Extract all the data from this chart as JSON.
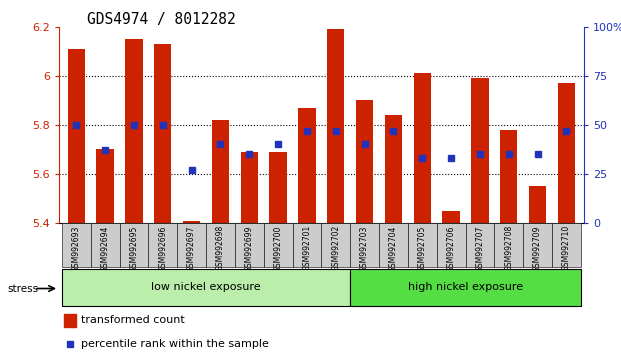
{
  "title": "GDS4974 / 8012282",
  "samples": [
    "GSM992693",
    "GSM992694",
    "GSM992695",
    "GSM992696",
    "GSM992697",
    "GSM992698",
    "GSM992699",
    "GSM992700",
    "GSM992701",
    "GSM992702",
    "GSM992703",
    "GSM992704",
    "GSM992705",
    "GSM992706",
    "GSM992707",
    "GSM992708",
    "GSM992709",
    "GSM992710"
  ],
  "red_values": [
    6.11,
    5.7,
    6.15,
    6.13,
    5.41,
    5.82,
    5.69,
    5.69,
    5.87,
    6.19,
    5.9,
    5.84,
    6.01,
    5.45,
    5.99,
    5.78,
    5.55,
    5.97
  ],
  "blue_percentiles": [
    50,
    37,
    50,
    50,
    27,
    40,
    35,
    40,
    47,
    47,
    40,
    47,
    33,
    33,
    35,
    35,
    35,
    47
  ],
  "ylim_left": [
    5.4,
    6.2
  ],
  "ylim_right": [
    0,
    100
  ],
  "group1_label": "low nickel exposure",
  "group2_label": "high nickel exposure",
  "stress_label": "stress",
  "legend_red": "transformed count",
  "legend_blue": "percentile rank within the sample",
  "bar_color": "#cc2200",
  "blue_color": "#2233bb",
  "group1_color": "#bbeeaa",
  "group2_color": "#55dd44",
  "left_tick_color": "#cc2200",
  "right_tick_color": "#2233bb",
  "base": 5.4,
  "n_low": 10,
  "n_high": 8
}
